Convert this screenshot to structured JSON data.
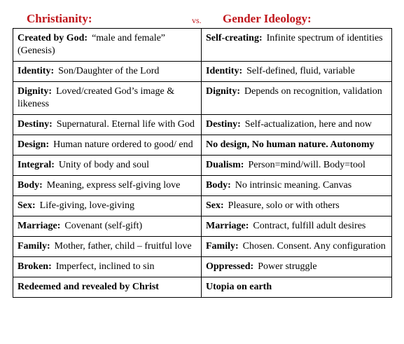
{
  "header": {
    "left": "Christianity:",
    "middle": "vs.",
    "right": "Gender Ideology:"
  },
  "table": {
    "rows": [
      [
        {
          "label": "Created by God:",
          "text": "“male and female” (Genesis)"
        },
        {
          "label": "Self-creating:",
          "text": "Infinite spectrum of identities"
        }
      ],
      [
        {
          "label": "Identity:",
          "text": "Son/Daughter of the Lord"
        },
        {
          "label": "Identity:",
          "text": "Self-defined, fluid, variable"
        }
      ],
      [
        {
          "label": "Dignity:",
          "text": "Loved/created God’s image & likeness"
        },
        {
          "label": "Dignity:",
          "text": "Depends on recognition, validation"
        }
      ],
      [
        {
          "label": "Destiny:",
          "text": "Supernatural. Eternal life with God"
        },
        {
          "label": "Destiny:",
          "text": "Self-actualization, here and now"
        }
      ],
      [
        {
          "label": "Design:",
          "text": "Human nature ordered to good/ end"
        },
        {
          "label": "No design, No human nature. Autonomy"
        }
      ],
      [
        {
          "label": "Integral:",
          "text": "Unity of body and soul"
        },
        {
          "label": "Dualism:",
          "text": "Person=mind/will. Body=tool"
        }
      ],
      [
        {
          "label": "Body:",
          "text": "Meaning, express self-giving love"
        },
        {
          "label": "Body:",
          "text": "No intrinsic meaning. Canvas"
        }
      ],
      [
        {
          "label": "Sex:",
          "text": "Life-giving, love-giving"
        },
        {
          "label": "Sex:",
          "text": "Pleasure, solo or with others"
        }
      ],
      [
        {
          "label": "Marriage:",
          "text": "Covenant (self-gift)"
        },
        {
          "label": "Marriage:",
          "text": "Contract, fulfill adult desires"
        }
      ],
      [
        {
          "label": "Family:",
          "text": "Mother, father, child – fruitful love"
        },
        {
          "label": "Family:",
          "text": "Chosen. Consent. Any configuration"
        }
      ],
      [
        {
          "label": "Broken:",
          "text": "Imperfect, inclined to sin"
        },
        {
          "label": "Oppressed:",
          "text": "Power struggle"
        }
      ],
      [
        {
          "label": "Redeemed and revealed by Christ"
        },
        {
          "label": "Utopia on earth"
        }
      ]
    ]
  }
}
